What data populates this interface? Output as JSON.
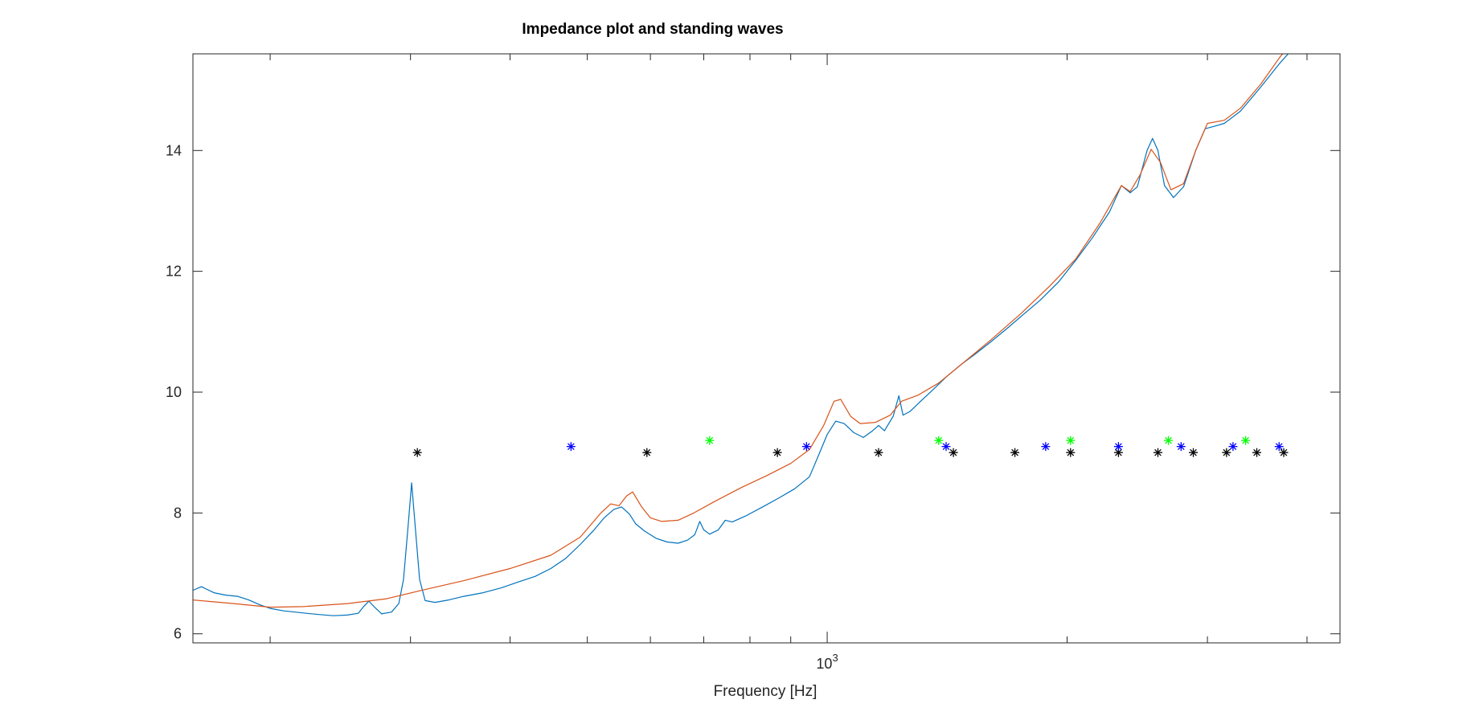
{
  "chart_data": {
    "type": "line",
    "title": "Impedance plot and standing waves",
    "xlabel": "Frequency [Hz]",
    "ylabel": "",
    "xscale": "log",
    "xlim": [
      160,
      4400
    ],
    "ylim": [
      5.85,
      15.6
    ],
    "x_tick_label": {
      "base": "10",
      "exponent": "3",
      "value": 1000
    },
    "x_minor_ticks": [
      200,
      300,
      400,
      500,
      600,
      700,
      800,
      900,
      2000,
      3000,
      4000
    ],
    "y_ticks": [
      6,
      8,
      10,
      12,
      14
    ],
    "grid": false,
    "legend": "none",
    "series": [
      {
        "color": "#0072bd",
        "style": "line",
        "points": [
          [
            160,
            6.72
          ],
          [
            164,
            6.78
          ],
          [
            170,
            6.68
          ],
          [
            176,
            6.64
          ],
          [
            182,
            6.62
          ],
          [
            188,
            6.56
          ],
          [
            194,
            6.48
          ],
          [
            200,
            6.42
          ],
          [
            208,
            6.38
          ],
          [
            215,
            6.36
          ],
          [
            222,
            6.34
          ],
          [
            230,
            6.32
          ],
          [
            240,
            6.3
          ],
          [
            250,
            6.31
          ],
          [
            258,
            6.34
          ],
          [
            262,
            6.45
          ],
          [
            266,
            6.54
          ],
          [
            270,
            6.45
          ],
          [
            276,
            6.33
          ],
          [
            284,
            6.36
          ],
          [
            290,
            6.5
          ],
          [
            294,
            6.9
          ],
          [
            298,
            7.8
          ],
          [
            301,
            8.5
          ],
          [
            304,
            7.8
          ],
          [
            308,
            6.9
          ],
          [
            313,
            6.55
          ],
          [
            322,
            6.52
          ],
          [
            335,
            6.56
          ],
          [
            350,
            6.62
          ],
          [
            370,
            6.68
          ],
          [
            390,
            6.76
          ],
          [
            410,
            6.86
          ],
          [
            430,
            6.95
          ],
          [
            450,
            7.08
          ],
          [
            470,
            7.25
          ],
          [
            490,
            7.48
          ],
          [
            510,
            7.72
          ],
          [
            525,
            7.92
          ],
          [
            540,
            8.06
          ],
          [
            552,
            8.1
          ],
          [
            565,
            7.98
          ],
          [
            575,
            7.82
          ],
          [
            590,
            7.7
          ],
          [
            610,
            7.58
          ],
          [
            630,
            7.52
          ],
          [
            650,
            7.5
          ],
          [
            668,
            7.55
          ],
          [
            682,
            7.64
          ],
          [
            692,
            7.86
          ],
          [
            700,
            7.72
          ],
          [
            712,
            7.65
          ],
          [
            730,
            7.72
          ],
          [
            745,
            7.88
          ],
          [
            760,
            7.85
          ],
          [
            790,
            7.95
          ],
          [
            830,
            8.1
          ],
          [
            870,
            8.25
          ],
          [
            910,
            8.4
          ],
          [
            950,
            8.6
          ],
          [
            975,
            8.95
          ],
          [
            1000,
            9.3
          ],
          [
            1025,
            9.52
          ],
          [
            1050,
            9.48
          ],
          [
            1080,
            9.33
          ],
          [
            1110,
            9.25
          ],
          [
            1140,
            9.36
          ],
          [
            1160,
            9.45
          ],
          [
            1180,
            9.36
          ],
          [
            1210,
            9.6
          ],
          [
            1230,
            9.94
          ],
          [
            1245,
            9.62
          ],
          [
            1270,
            9.68
          ],
          [
            1310,
            9.85
          ],
          [
            1360,
            10.05
          ],
          [
            1410,
            10.25
          ],
          [
            1470,
            10.45
          ],
          [
            1530,
            10.62
          ],
          [
            1600,
            10.82
          ],
          [
            1680,
            11.05
          ],
          [
            1760,
            11.28
          ],
          [
            1850,
            11.52
          ],
          [
            1950,
            11.82
          ],
          [
            2050,
            12.18
          ],
          [
            2150,
            12.55
          ],
          [
            2260,
            12.98
          ],
          [
            2340,
            13.42
          ],
          [
            2400,
            13.3
          ],
          [
            2450,
            13.4
          ],
          [
            2520,
            14.0
          ],
          [
            2560,
            14.2
          ],
          [
            2600,
            14.0
          ],
          [
            2650,
            13.42
          ],
          [
            2720,
            13.22
          ],
          [
            2800,
            13.4
          ],
          [
            2900,
            14.0
          ],
          [
            2980,
            14.36
          ],
          [
            3060,
            14.4
          ],
          [
            3150,
            14.45
          ],
          [
            3300,
            14.65
          ],
          [
            3500,
            15.05
          ],
          [
            3700,
            15.45
          ],
          [
            3800,
            15.62
          ]
        ]
      },
      {
        "color": "#d95319",
        "style": "line",
        "points": [
          [
            160,
            6.56
          ],
          [
            180,
            6.5
          ],
          [
            200,
            6.44
          ],
          [
            220,
            6.45
          ],
          [
            250,
            6.5
          ],
          [
            280,
            6.58
          ],
          [
            310,
            6.72
          ],
          [
            350,
            6.88
          ],
          [
            400,
            7.08
          ],
          [
            450,
            7.3
          ],
          [
            490,
            7.6
          ],
          [
            520,
            8.0
          ],
          [
            535,
            8.15
          ],
          [
            548,
            8.12
          ],
          [
            560,
            8.28
          ],
          [
            570,
            8.35
          ],
          [
            585,
            8.1
          ],
          [
            600,
            7.92
          ],
          [
            620,
            7.86
          ],
          [
            650,
            7.88
          ],
          [
            680,
            8.0
          ],
          [
            720,
            8.18
          ],
          [
            780,
            8.42
          ],
          [
            840,
            8.62
          ],
          [
            900,
            8.82
          ],
          [
            950,
            9.05
          ],
          [
            990,
            9.45
          ],
          [
            1020,
            9.85
          ],
          [
            1040,
            9.88
          ],
          [
            1070,
            9.6
          ],
          [
            1100,
            9.48
          ],
          [
            1150,
            9.5
          ],
          [
            1200,
            9.62
          ],
          [
            1240,
            9.85
          ],
          [
            1300,
            9.95
          ],
          [
            1380,
            10.15
          ],
          [
            1480,
            10.48
          ],
          [
            1600,
            10.85
          ],
          [
            1750,
            11.3
          ],
          [
            1900,
            11.75
          ],
          [
            2050,
            12.2
          ],
          [
            2200,
            12.8
          ],
          [
            2340,
            13.42
          ],
          [
            2400,
            13.32
          ],
          [
            2470,
            13.6
          ],
          [
            2550,
            14.02
          ],
          [
            2620,
            13.8
          ],
          [
            2700,
            13.35
          ],
          [
            2800,
            13.45
          ],
          [
            2900,
            14.0
          ],
          [
            3000,
            14.45
          ],
          [
            3150,
            14.5
          ],
          [
            3300,
            14.7
          ],
          [
            3500,
            15.1
          ],
          [
            3700,
            15.55
          ],
          [
            3740,
            15.62
          ]
        ]
      },
      {
        "color": "#000000",
        "style": "asterisk",
        "points": [
          [
            306,
            9.0
          ],
          [
            594,
            9.0
          ],
          [
            866,
            9.0
          ],
          [
            1160,
            9.0
          ],
          [
            1440,
            9.0
          ],
          [
            1720,
            9.0
          ],
          [
            2020,
            9.0
          ],
          [
            2320,
            9.0
          ],
          [
            2600,
            9.0
          ],
          [
            2880,
            9.0
          ],
          [
            3170,
            9.0
          ],
          [
            3460,
            9.0
          ],
          [
            3740,
            9.0
          ]
        ]
      },
      {
        "color": "#0000ff",
        "style": "asterisk",
        "points": [
          [
            477,
            9.1
          ],
          [
            942,
            9.1
          ],
          [
            1410,
            9.1
          ],
          [
            1880,
            9.1
          ],
          [
            2320,
            9.1
          ],
          [
            2780,
            9.1
          ],
          [
            3230,
            9.1
          ],
          [
            3690,
            9.1
          ]
        ]
      },
      {
        "color": "#00ff00",
        "style": "asterisk",
        "points": [
          [
            712,
            9.2
          ],
          [
            1380,
            9.2
          ],
          [
            2020,
            9.2
          ],
          [
            2680,
            9.2
          ],
          [
            3350,
            9.2
          ]
        ]
      }
    ]
  }
}
